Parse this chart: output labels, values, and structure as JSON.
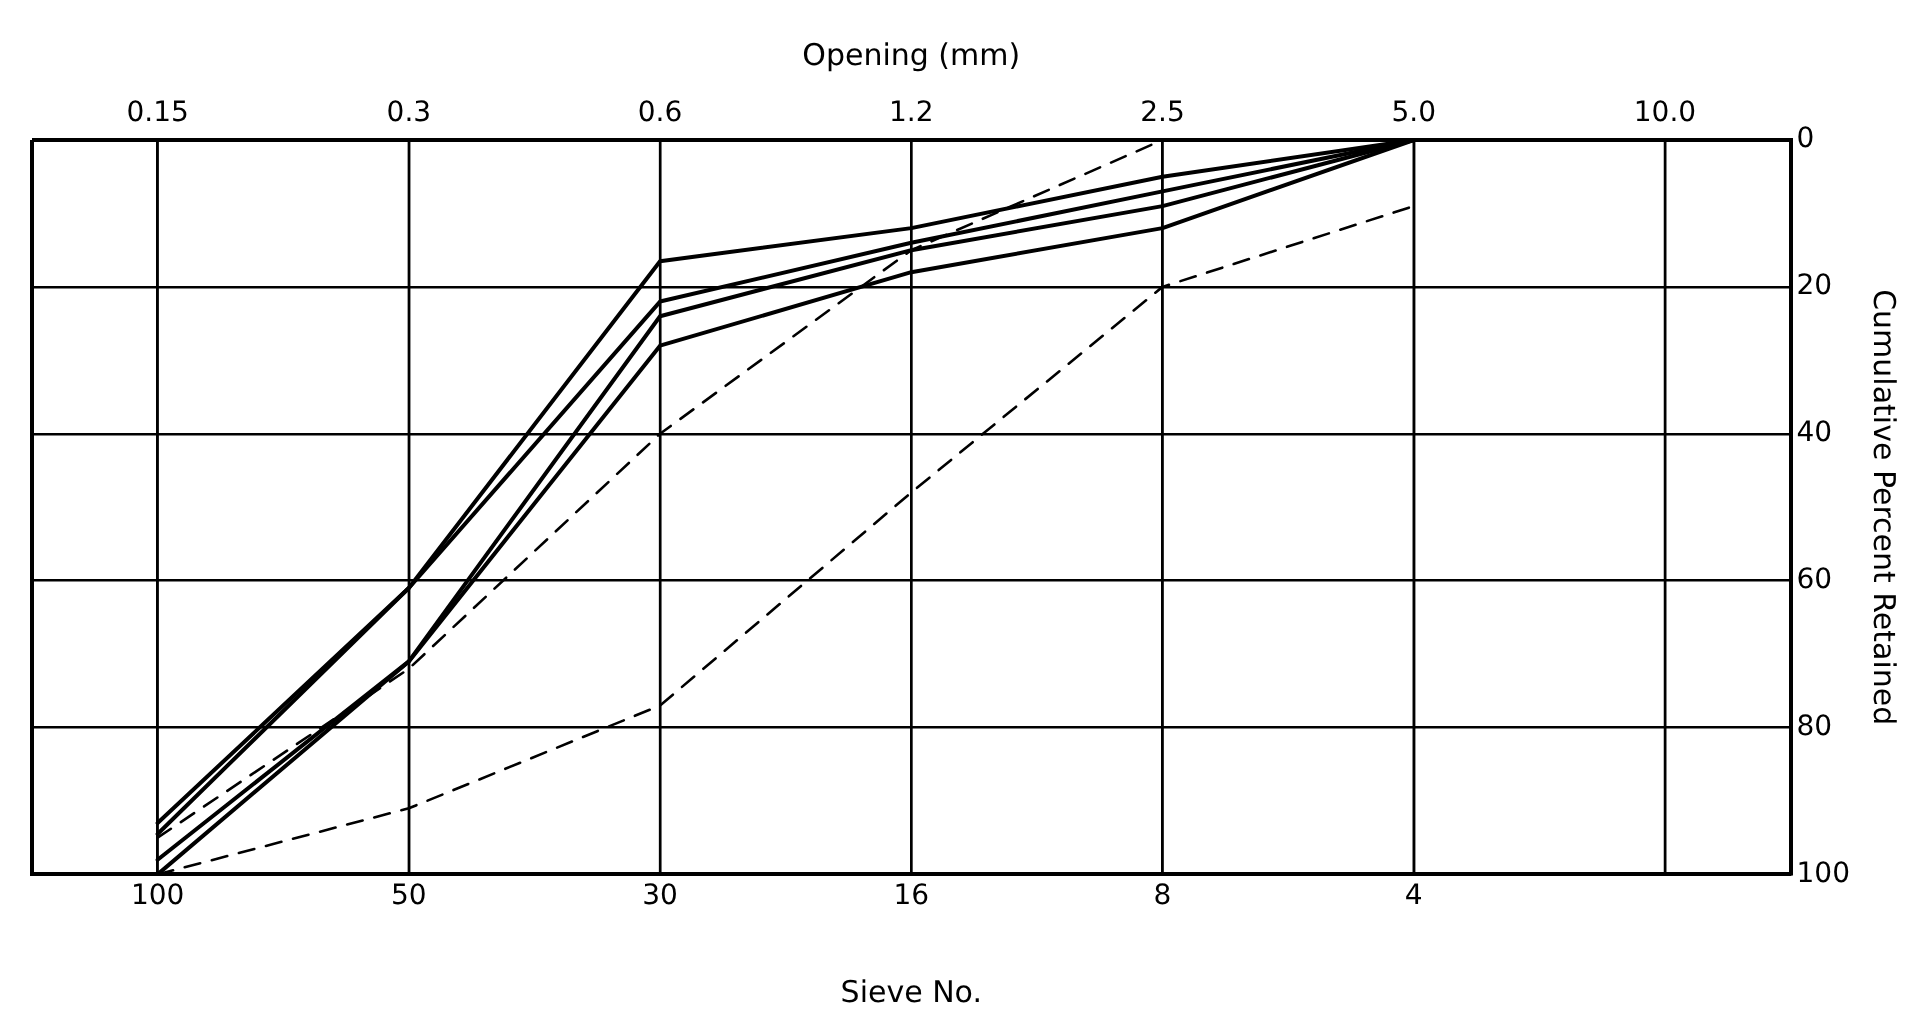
{
  "chart_data": {
    "type": "line",
    "xlabel": "Sieve No.",
    "x2label": "Opening (mm)",
    "ylabel": "Cumulative Percent Retained",
    "categories": [
      "100",
      "50",
      "30",
      "16",
      "8",
      "4",
      null
    ],
    "series": [
      {
        "color": "#000000",
        "values": [
          93,
          61,
          16.5,
          12,
          5,
          0,
          null
        ]
      },
      {
        "color": "#000000",
        "values": [
          94.5,
          61,
          22,
          14,
          7,
          0,
          null
        ]
      },
      {
        "color": "#000000",
        "values": [
          98,
          71,
          24,
          15,
          9,
          0,
          null
        ]
      },
      {
        "color": "#000000",
        "values": [
          100,
          71,
          28,
          18,
          12,
          0,
          null
        ]
      },
      {
        "color": "#000000",
        "line_style": "dashed",
        "values": [
          95,
          72,
          40,
          15,
          0,
          null,
          null
        ]
      },
      {
        "color": "#000000",
        "line_style": "dashed",
        "values": [
          100,
          91,
          77,
          48,
          20,
          9,
          null
        ]
      }
    ],
    "annotations": [
      "0.15",
      "0.3",
      "0.6",
      "1.2",
      "2.5",
      "5.0",
      "10.0"
    ],
    "ylim": [
      100,
      0
    ],
    "yticks": [
      0,
      20,
      40,
      60,
      80,
      100
    ],
    "grid": true,
    "legend": false,
    "marker": "none",
    "line_style": "solid"
  }
}
